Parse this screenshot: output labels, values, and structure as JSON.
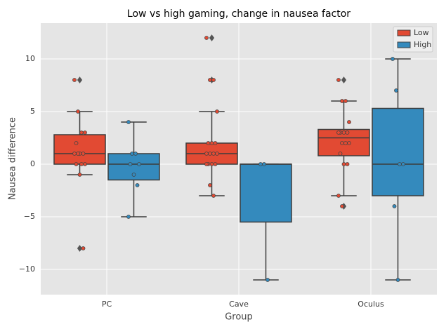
{
  "chart_data": {
    "type": "box",
    "title": "Low vs high gaming, change in nausea factor",
    "x_label": "Group",
    "y_label": "Nausea difference",
    "categories": [
      "PC",
      "Cave",
      "Oculus"
    ],
    "ylim": [
      -12.4,
      13.4
    ],
    "yticks": [
      {
        "value": -10,
        "label": "−10"
      },
      {
        "value": -5,
        "label": "−5"
      },
      0,
      5,
      10
    ],
    "grid": true,
    "legend": "upper right",
    "series": [
      {
        "name": "Low",
        "color": "#e24a33",
        "whislo": [
          -1,
          -3,
          -3
        ],
        "q1": [
          0,
          0,
          0.8
        ],
        "median": [
          1,
          1,
          2.5
        ],
        "q3": [
          2.8,
          2,
          3.3
        ],
        "whishi": [
          5,
          5,
          6
        ],
        "outliers": [
          [
            8,
            -8
          ],
          [
            8,
            12
          ],
          [
            8,
            -4
          ]
        ],
        "points": [
          [
            8,
            5,
            3,
            3,
            2,
            1,
            1,
            1,
            1,
            0,
            0,
            0,
            -1,
            -8
          ],
          [
            12,
            8,
            8,
            5,
            2,
            2,
            2,
            1,
            1,
            1,
            1,
            0,
            0,
            0,
            0,
            -2,
            -3
          ],
          [
            8,
            6,
            6,
            4,
            3,
            3,
            3,
            3,
            2,
            2,
            2,
            1,
            0,
            0,
            -3,
            -4
          ]
        ]
      },
      {
        "name": "High",
        "color": "#348abd",
        "whislo": [
          -5,
          -11,
          -11
        ],
        "q1": [
          -1.5,
          -5.5,
          -3
        ],
        "median": [
          0,
          0,
          0
        ],
        "q3": [
          1,
          0,
          5.3
        ],
        "whishi": [
          4,
          0,
          10
        ],
        "outliers": [
          [],
          [],
          []
        ],
        "points": [
          [
            4,
            1,
            1,
            0,
            0,
            -1,
            -2,
            -5
          ],
          [
            0,
            0,
            -11
          ],
          [
            10,
            7,
            0,
            0,
            -4,
            -11
          ]
        ]
      }
    ]
  }
}
